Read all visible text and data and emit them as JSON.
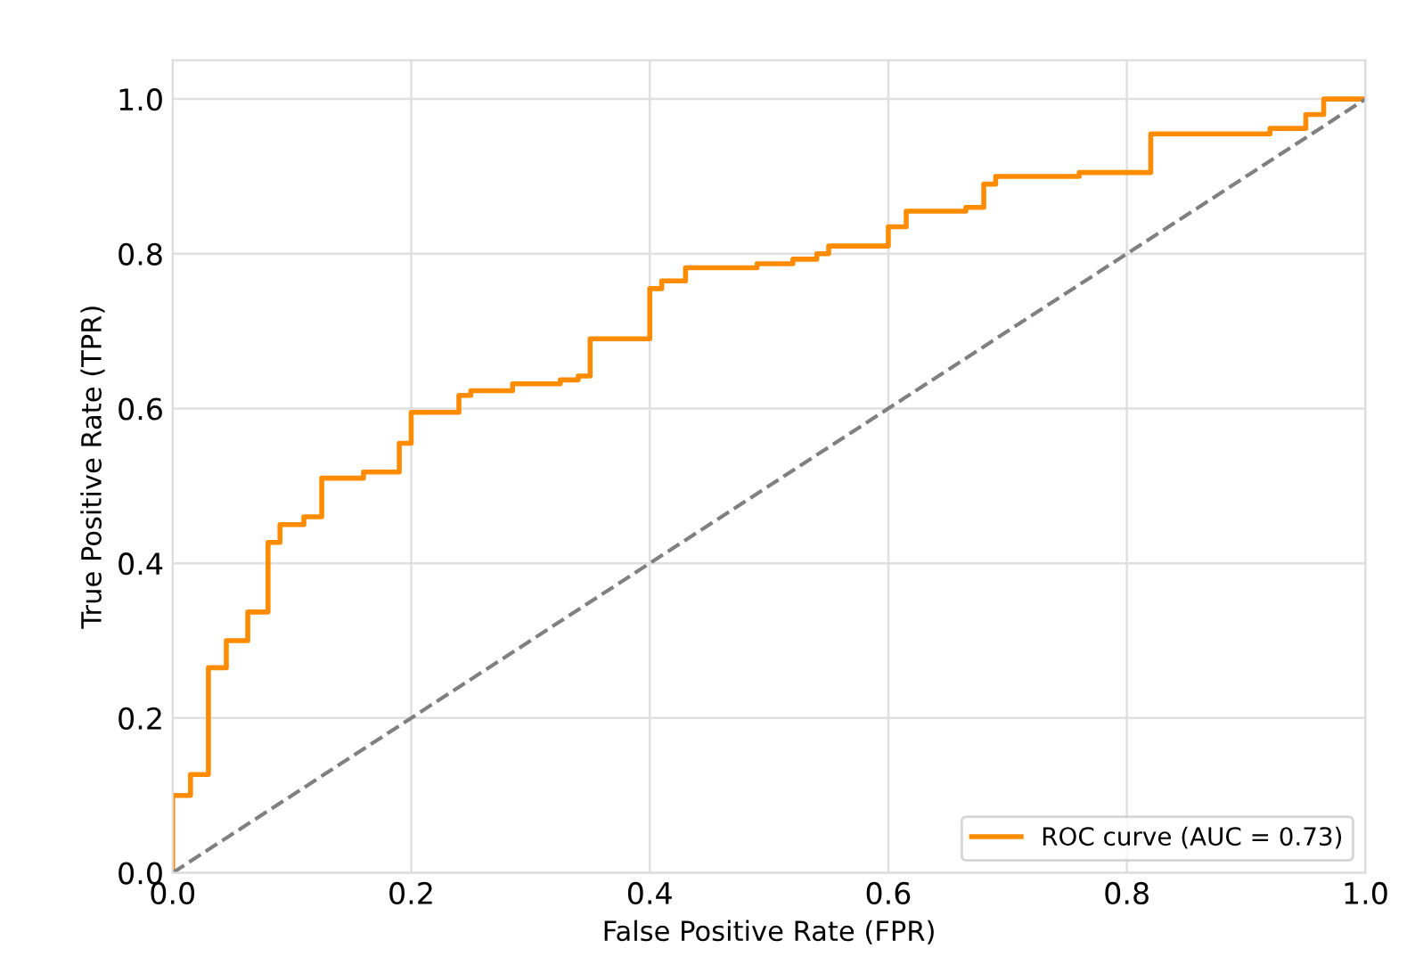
{
  "chart_data": {
    "type": "line",
    "xlabel": "False Positive Rate (FPR)",
    "ylabel": "True Positive Rate (TPR)",
    "series": [
      {
        "name": "ROC curve (AUC = 0.73)",
        "type": "step",
        "color": "#ff8c00",
        "line_style": "solid",
        "x": [
          0,
          0,
          0.015,
          0.03,
          0.045,
          0.063,
          0.08,
          0.09,
          0.11,
          0.125,
          0.16,
          0.19,
          0.2,
          0.24,
          0.25,
          0.285,
          0.325,
          0.34,
          0.35,
          0.4,
          0.41,
          0.43,
          0.49,
          0.52,
          0.54,
          0.55,
          0.6,
          0.615,
          0.665,
          0.68,
          0.69,
          0.76,
          0.82,
          0.92,
          0.95,
          0.965,
          1.0
        ],
        "values": [
          0,
          0.1,
          0.127,
          0.265,
          0.3,
          0.337,
          0.427,
          0.45,
          0.46,
          0.51,
          0.518,
          0.555,
          0.595,
          0.617,
          0.623,
          0.632,
          0.637,
          0.642,
          0.69,
          0.755,
          0.765,
          0.782,
          0.787,
          0.793,
          0.8,
          0.81,
          0.835,
          0.855,
          0.86,
          0.89,
          0.9,
          0.905,
          0.955,
          0.962,
          0.98,
          1.0,
          1.0
        ]
      },
      {
        "color": "#808080",
        "line_style": "dashed",
        "x": [
          0,
          1
        ],
        "values": [
          0,
          1
        ]
      }
    ],
    "xlim": [
      0,
      1
    ],
    "ylim": [
      0,
      1.05
    ],
    "xticks": [
      {
        "value": 0,
        "label": "0.0"
      },
      0.2,
      0.4,
      0.6,
      0.8,
      {
        "value": 1,
        "label": "1.0"
      }
    ],
    "yticks": [
      {
        "value": 0,
        "label": "0.0"
      },
      0.2,
      0.4,
      0.6,
      0.8,
      {
        "value": 1,
        "label": "1.0"
      }
    ],
    "grid": true,
    "legend": "lower right",
    "marker": "none"
  }
}
